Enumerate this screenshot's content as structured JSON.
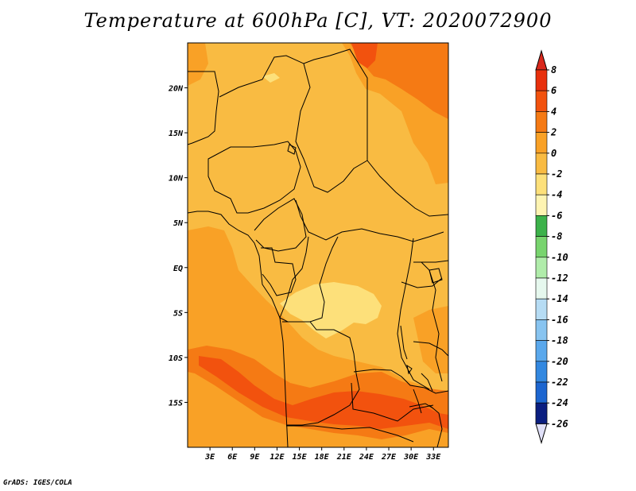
{
  "title": "Temperature at 600hPa [C], VT: 2020072900",
  "credit": "GrADS: IGES/COLA",
  "map": {
    "lon_range": [
      0,
      35
    ],
    "lat_range": [
      -20,
      25
    ],
    "lat_ticks": [
      {
        "lat": 20,
        "label": "20N"
      },
      {
        "lat": 15,
        "label": "15N"
      },
      {
        "lat": 10,
        "label": "10N"
      },
      {
        "lat": 5,
        "label": "5N"
      },
      {
        "lat": 0,
        "label": "EQ"
      },
      {
        "lat": -5,
        "label": "5S"
      },
      {
        "lat": -10,
        "label": "10S"
      },
      {
        "lat": -15,
        "label": "15S"
      }
    ],
    "lon_ticks": [
      {
        "lon": 3,
        "label": "3E"
      },
      {
        "lon": 6,
        "label": "6E"
      },
      {
        "lon": 9,
        "label": "9E"
      },
      {
        "lon": 12,
        "label": "12E"
      },
      {
        "lon": 15,
        "label": "15E"
      },
      {
        "lon": 18,
        "label": "18E"
      },
      {
        "lon": 21,
        "label": "21E"
      },
      {
        "lon": 24,
        "label": "24E"
      },
      {
        "lon": 27,
        "label": "27E"
      },
      {
        "lon": 30,
        "label": "30E"
      },
      {
        "lon": 33,
        "label": "33E"
      }
    ]
  },
  "colorbar": {
    "levels": [
      "8",
      "6",
      "4",
      "2",
      "0",
      "-2",
      "-4",
      "-6",
      "-8",
      "-10",
      "-12",
      "-14",
      "-16",
      "-18",
      "-20",
      "-22",
      "-24",
      "-26"
    ],
    "colors": [
      "#e8300c",
      "#f2520e",
      "#f57a14",
      "#f9a126",
      "#f9bb42",
      "#fde07a",
      "#fef4b2",
      "#3cb24a",
      "#78d46e",
      "#b0ecaa",
      "#e6f8ee",
      "#b6dcf4",
      "#88c4f0",
      "#5aa8ec",
      "#3388e0",
      "#1d66d0",
      "#1244b0",
      "#0b1e80"
    ],
    "top_cap_color": "#d8281c",
    "bottom_cap_color": "#e0e0f8"
  },
  "field_colors": {
    "t0": "#f9bb42",
    "t2": "#f9a126",
    "t4": "#f57a14",
    "t6": "#f2520e",
    "tm2": "#fde07a",
    "border": "#000000"
  }
}
